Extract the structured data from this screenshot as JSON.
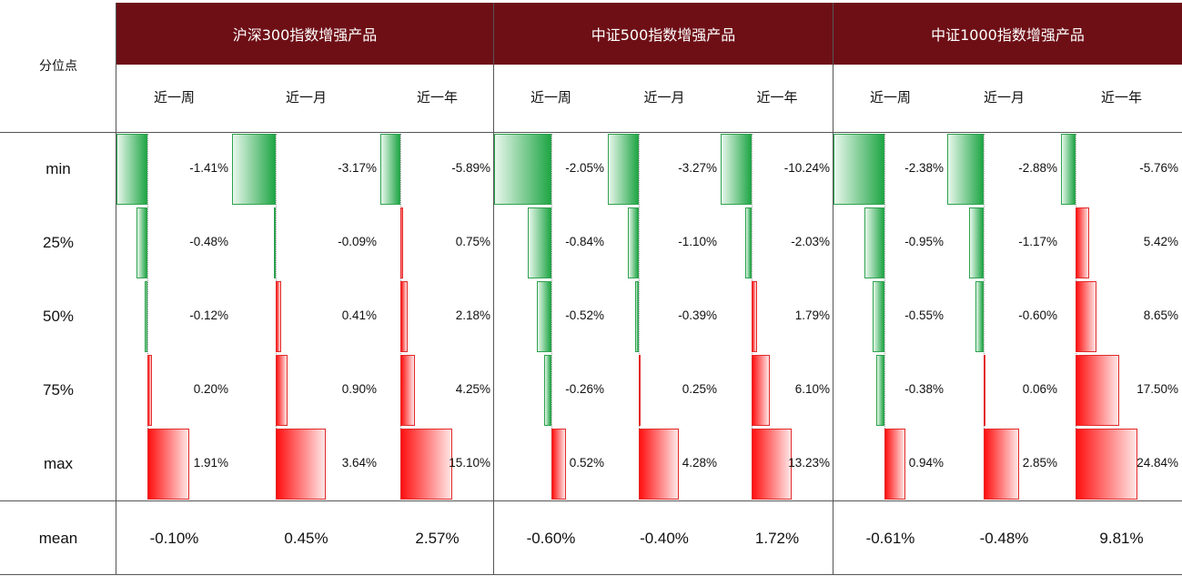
{
  "header_label": "分位点",
  "groups": [
    "沪深300指数增强产品",
    "中证500指数增强产品",
    "中证1000指数增强产品"
  ],
  "periods": [
    "近一周",
    "近一月",
    "近一年"
  ],
  "mean_label": "mean",
  "chart_data": {
    "type": "table",
    "rows": [
      "min",
      "25%",
      "50%",
      "75%",
      "max"
    ],
    "columns": [
      {
        "group": "沪深300指数增强产品",
        "period": "近一周",
        "values": [
          -1.41,
          -0.48,
          -0.12,
          0.2,
          1.91
        ],
        "labels": [
          "-1.41%",
          "-0.48%",
          "-0.12%",
          "0.20%",
          "1.91%"
        ],
        "mean": "-0.10%"
      },
      {
        "group": "沪深300指数增强产品",
        "period": "近一月",
        "values": [
          -3.17,
          -0.09,
          0.41,
          0.9,
          3.64
        ],
        "labels": [
          "-3.17%",
          "-0.09%",
          "0.41%",
          "0.90%",
          "3.64%"
        ],
        "mean": "0.45%"
      },
      {
        "group": "沪深300指数增强产品",
        "period": "近一年",
        "values": [
          -5.89,
          0.75,
          2.18,
          4.25,
          15.1
        ],
        "labels": [
          "-5.89%",
          "0.75%",
          "2.18%",
          "4.25%",
          "15.10%"
        ],
        "mean": "2.57%"
      },
      {
        "group": "中证500指数增强产品",
        "period": "近一周",
        "values": [
          -2.05,
          -0.84,
          -0.52,
          -0.26,
          0.52
        ],
        "labels": [
          "-2.05%",
          "-0.84%",
          "-0.52%",
          "-0.26%",
          "0.52%"
        ],
        "mean": "-0.60%"
      },
      {
        "group": "中证500指数增强产品",
        "period": "近一月",
        "values": [
          -3.27,
          -1.1,
          -0.39,
          0.25,
          4.28
        ],
        "labels": [
          "-3.27%",
          "-1.10%",
          "-0.39%",
          "0.25%",
          "4.28%"
        ],
        "mean": "-0.40%"
      },
      {
        "group": "中证500指数增强产品",
        "period": "近一年",
        "values": [
          -10.24,
          -2.03,
          1.79,
          6.1,
          13.23
        ],
        "labels": [
          "-10.24%",
          "-2.03%",
          "1.79%",
          "6.10%",
          "13.23%"
        ],
        "mean": "1.72%"
      },
      {
        "group": "中证1000指数增强产品",
        "period": "近一周",
        "values": [
          -2.38,
          -0.95,
          -0.55,
          -0.38,
          0.94
        ],
        "labels": [
          "-2.38%",
          "-0.95%",
          "-0.55%",
          "-0.38%",
          "0.94%"
        ],
        "mean": "-0.61%"
      },
      {
        "group": "中证1000指数增强产品",
        "period": "近一月",
        "values": [
          -2.88,
          -1.17,
          -0.6,
          0.06,
          2.85
        ],
        "labels": [
          "-2.88%",
          "-1.17%",
          "-0.60%",
          "0.06%",
          "2.85%"
        ],
        "mean": "-0.48%"
      },
      {
        "group": "中证1000指数增强产品",
        "period": "近一年",
        "values": [
          -5.76,
          5.42,
          8.65,
          17.5,
          24.84
        ],
        "labels": [
          "-5.76%",
          "5.42%",
          "8.65%",
          "17.50%",
          "24.84%"
        ],
        "mean": "9.81%"
      }
    ]
  },
  "colors": {
    "header_bg": "#6e0f16",
    "positive": "#e22a2a",
    "negative": "#2fa24f"
  }
}
